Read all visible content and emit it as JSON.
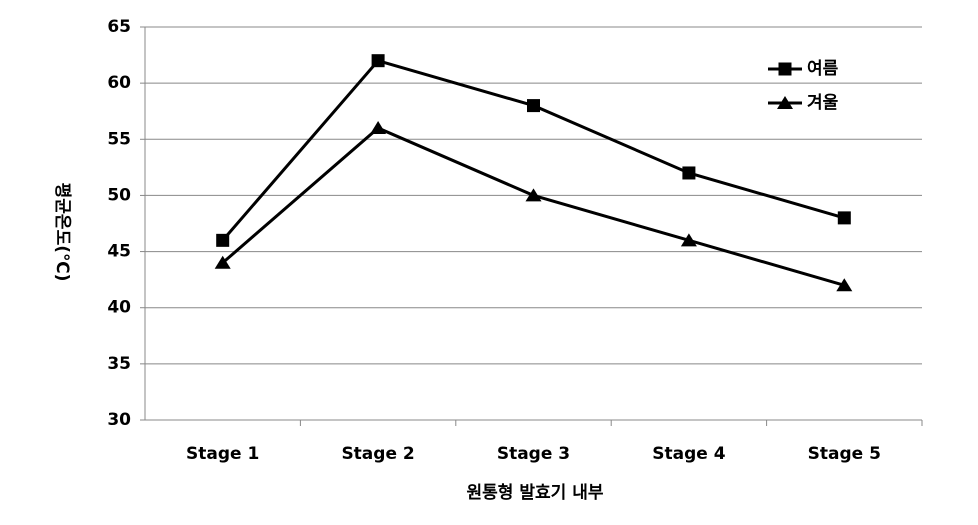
{
  "chart_data": {
    "type": "line",
    "x_label": "원통형 발효기 내부",
    "y_label": "평균온도(℃)",
    "categories": [
      "Stage 1",
      "Stage 2",
      "Stage 3",
      "Stage 4",
      "Stage 5"
    ],
    "series": [
      {
        "name": "여름",
        "color": "#000000",
        "marker": "square",
        "values": [
          46,
          62,
          58,
          52,
          48
        ]
      },
      {
        "name": "겨울",
        "color": "#000000",
        "marker": "triangle",
        "values": [
          44,
          56,
          50,
          46,
          42
        ]
      }
    ],
    "ylim": [
      30,
      65
    ],
    "yticks": [
      30,
      35,
      40,
      45,
      50,
      55,
      60,
      65
    ],
    "grid": true,
    "legend": "upper right"
  }
}
